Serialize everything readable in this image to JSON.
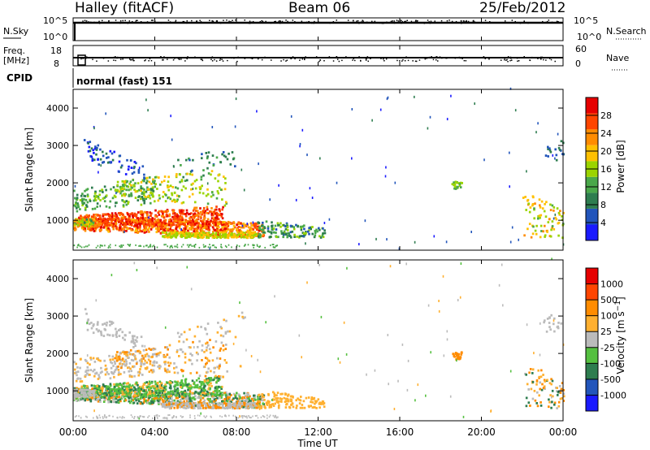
{
  "header": {
    "station": "Halley (fitACF)",
    "beam": "Beam 06",
    "date": "25/Feb/2012"
  },
  "top_panels": {
    "nsky_label": "N.Sky",
    "nsky_ticks": [
      "10^5",
      "10^0"
    ],
    "nsearch_label": "N.Search",
    "nsearch_ticks": [
      "10^5",
      "10^0"
    ],
    "freq_label": "Freq.",
    "freq_unit": "[MHz]",
    "freq_ticks": [
      "18",
      "8"
    ],
    "nave_label": "Nave",
    "nave_ticks": [
      "60",
      "0"
    ],
    "cpid_label": "CPID",
    "cpid_text": "normal (fast) 151"
  },
  "colors": {
    "power": [
      "#1a1aff",
      "#2255bb",
      "#2e7d4f",
      "#4aa84a",
      "#9bd400",
      "#ffc000",
      "#ff8c00",
      "#ff4500",
      "#e60000"
    ],
    "velocity": [
      "#e60000",
      "#ff4500",
      "#ff8c00",
      "#ffb030",
      "#bbbbbb",
      "#55c040",
      "#2e7d4f",
      "#2255bb",
      "#1a1aff"
    ]
  },
  "chart_data": [
    {
      "type": "heatmap",
      "panel": "power",
      "ylabel": "Slant Range [km]",
      "xlabel": "Time UT",
      "x_ticks": [
        "00:00",
        "04:00",
        "08:00",
        "12:00",
        "16:00",
        "20:00",
        "00:00"
      ],
      "y_ticks": [
        1000,
        2000,
        3000,
        4000
      ],
      "ylim": [
        200,
        4500
      ],
      "xlim_hours": [
        0,
        24
      ],
      "colorbar_label": "Power [dB]",
      "colorbar_ticks": [
        "4",
        "8",
        "12",
        "16",
        "20",
        "24",
        "28"
      ],
      "colorbar_range": [
        0,
        30
      ]
    },
    {
      "type": "heatmap",
      "panel": "velocity",
      "ylabel": "Slant Range [km]",
      "xlabel": "Time UT",
      "x_ticks": [
        "00:00",
        "04:00",
        "08:00",
        "12:00",
        "16:00",
        "20:00",
        "00:00"
      ],
      "y_ticks": [
        1000,
        2000,
        3000,
        4000
      ],
      "ylim": [
        200,
        4500
      ],
      "xlim_hours": [
        0,
        24
      ],
      "colorbar_label": "Velocity [m s^-1]",
      "colorbar_ticks": [
        "1000",
        "500",
        "100",
        "25",
        "-25",
        "-100",
        "-500",
        "-1000"
      ]
    }
  ]
}
